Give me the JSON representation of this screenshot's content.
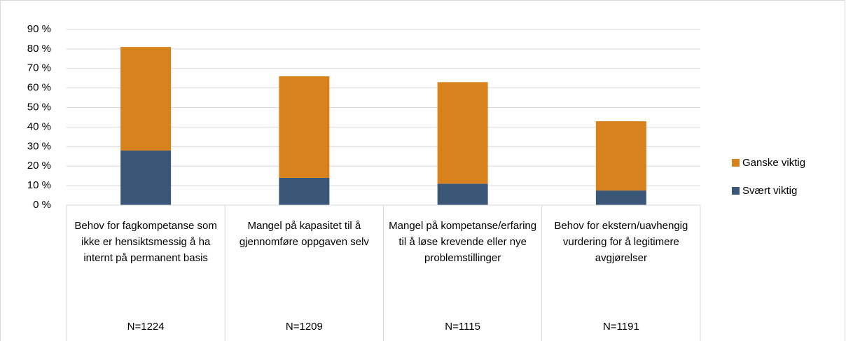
{
  "chart_data": {
    "type": "stacked_bar",
    "categories": [
      "Behov for fagkompetanse som ikke er hensiktsmessig å ha internt på permanent basis",
      "Mangel på kapasitet til å gjennomføre oppgaven selv",
      "Mangel på kompetanse/erfaring til å løse krevende eller nye problemstillinger",
      "Behov for ekstern/uavhengig vurdering for å legitimere avgjørelser"
    ],
    "sample_sizes": [
      "N=1224",
      "N=1209",
      "N=1115",
      "N=1191"
    ],
    "series": [
      {
        "name": "Svært viktig",
        "color": "#3b5778",
        "values": [
          28,
          14,
          11,
          7.5
        ]
      },
      {
        "name": "Ganske viktig",
        "color": "#d8821d",
        "values": [
          53,
          52,
          52,
          35.5
        ]
      }
    ],
    "ylim": [
      0,
      90
    ],
    "yticks": [
      {
        "value": 0,
        "label": "0 %"
      },
      {
        "value": 10,
        "label": "10 %"
      },
      {
        "value": 20,
        "label": "20 %"
      },
      {
        "value": 30,
        "label": "30 %"
      },
      {
        "value": 40,
        "label": "40 %"
      },
      {
        "value": 50,
        "label": "50 %"
      },
      {
        "value": 60,
        "label": "60 %"
      },
      {
        "value": 70,
        "label": "70 %"
      },
      {
        "value": 80,
        "label": "80 %"
      },
      {
        "value": 90,
        "label": "90 %"
      }
    ],
    "grid": true,
    "legend": "right"
  }
}
